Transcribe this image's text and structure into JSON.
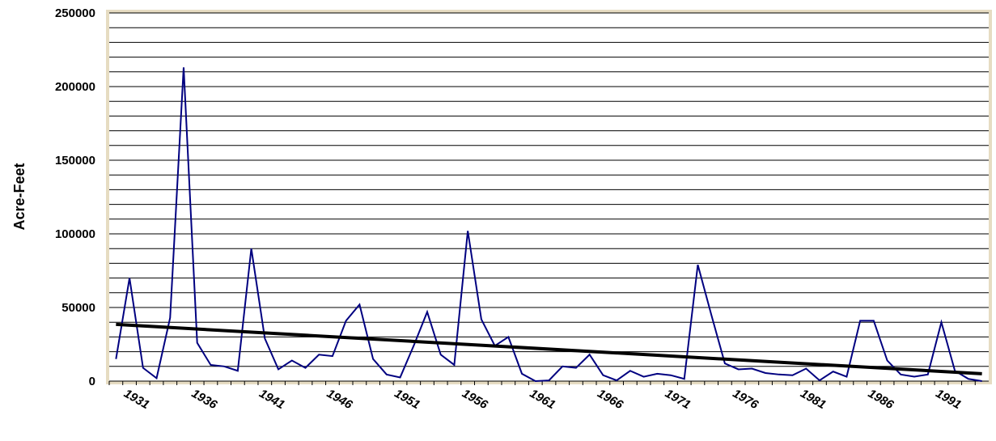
{
  "chart_data": {
    "type": "line",
    "y_label": "Acre-Feet",
    "categories": [
      null,
      "1931",
      null,
      null,
      null,
      null,
      "1936",
      null,
      null,
      null,
      null,
      "1941",
      null,
      null,
      null,
      null,
      "1946",
      null,
      null,
      null,
      null,
      "1951",
      null,
      null,
      null,
      null,
      "1956",
      null,
      null,
      null,
      null,
      "1961",
      null,
      null,
      null,
      null,
      "1966",
      null,
      null,
      null,
      null,
      "1971",
      null,
      null,
      null,
      null,
      "1976",
      null,
      null,
      null,
      null,
      "1981",
      null,
      null,
      null,
      null,
      "1986",
      null,
      null,
      null,
      null,
      "1991",
      null,
      null,
      null
    ],
    "series": [
      {
        "color": "#000080",
        "values": [
          15000,
          70000,
          9000,
          2000,
          43000,
          213000,
          26000,
          11000,
          10000,
          7000,
          90000,
          29000,
          8000,
          14000,
          9000,
          18000,
          17000,
          41000,
          52000,
          15000,
          4500,
          2500,
          24000,
          47000,
          18000,
          11000,
          102000,
          42000,
          24000,
          30000,
          5000,
          0,
          500,
          10000,
          9000,
          18000,
          4000,
          500,
          7000,
          3000,
          5000,
          4000,
          1500,
          79000,
          45000,
          12000,
          8000,
          8500,
          5500,
          4500,
          4000,
          8500,
          500,
          6500,
          3000,
          41000,
          41000,
          14000,
          4500,
          3000,
          4500,
          40000,
          7000,
          1500,
          0
        ]
      }
    ],
    "trend": {
      "color": "#000000",
      "values": [
        38500,
        5000
      ]
    },
    "ylim": [
      0,
      250000
    ],
    "yticks": [
      0,
      50000,
      100000,
      150000,
      200000,
      250000
    ],
    "minor_grid_step": 10000,
    "grid": true
  }
}
